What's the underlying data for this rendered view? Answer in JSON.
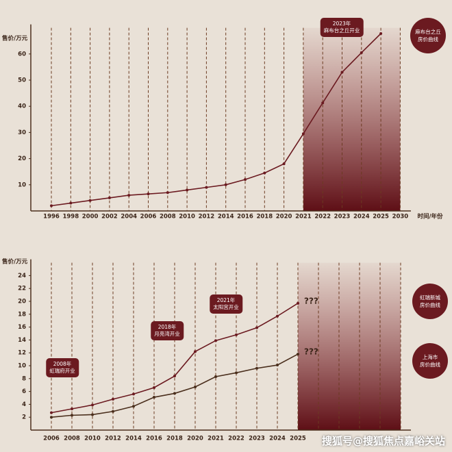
{
  "charts": [
    {
      "type": "line",
      "y_label": "售价/万元",
      "x_label": "时间/年份",
      "categories": [
        "1996",
        "1998",
        "2000",
        "2002",
        "2004",
        "2006",
        "2008",
        "2010",
        "2012",
        "2014",
        "2016",
        "2018",
        "2020",
        "2021",
        "2022",
        "2023",
        "2024",
        "2025",
        "2030"
      ],
      "series": [
        {
          "name": "麻布台之丘\n房价曲线",
          "color": "#6b1a20",
          "values": [
            2,
            3,
            4,
            5,
            6,
            6.5,
            7,
            8,
            9,
            10,
            12,
            14.5,
            18,
            29.5,
            41.3,
            53,
            60.5,
            67.8,
            null
          ]
        }
      ],
      "annotations": [
        {
          "text": "2023年\n麻布台之丘开业"
        }
      ],
      "ylim": [
        0,
        70
      ],
      "yticks": [
        10,
        20,
        30,
        40,
        50,
        60
      ],
      "grid": true
    },
    {
      "type": "line",
      "y_label": "售价/万元",
      "categories": [
        "2006",
        "2008",
        "2010",
        "2012",
        "2014",
        "2016",
        "2018",
        "2020",
        "2021",
        "2022",
        "2023",
        "2024",
        "2025",
        null,
        null,
        null,
        null,
        null
      ],
      "series": [
        {
          "name": "虹瑞新城\n房价曲线",
          "color": "#6b1a20",
          "end_label": "???",
          "values": [
            2.7,
            3.3,
            3.9,
            4.8,
            5.6,
            6.6,
            8.4,
            12.2,
            13.9,
            14.8,
            15.9,
            17.7,
            19.7,
            null,
            null,
            null,
            null,
            null
          ]
        },
        {
          "name": "上海市\n房价曲线",
          "color": "#4a2e1c",
          "end_label": "???",
          "values": [
            2.0,
            2.3,
            2.4,
            2.9,
            3.7,
            5.1,
            5.7,
            6.7,
            8.3,
            8.9,
            9.6,
            10.1,
            11.8,
            null,
            null,
            null,
            null,
            null
          ]
        }
      ],
      "annotations": [
        {
          "text": "2008年\n虹瑞府开业"
        },
        {
          "text": "2018年\n月亮湾开业"
        },
        {
          "text": "2021年\n太阳宫开业"
        }
      ],
      "ylim": [
        0,
        26
      ],
      "yticks": [
        2,
        4,
        6,
        8,
        10,
        12,
        14,
        16,
        18,
        20,
        22,
        24
      ],
      "grid": true
    }
  ],
  "watermark": "搜狐号@搜狐焦点嘉峪关站"
}
